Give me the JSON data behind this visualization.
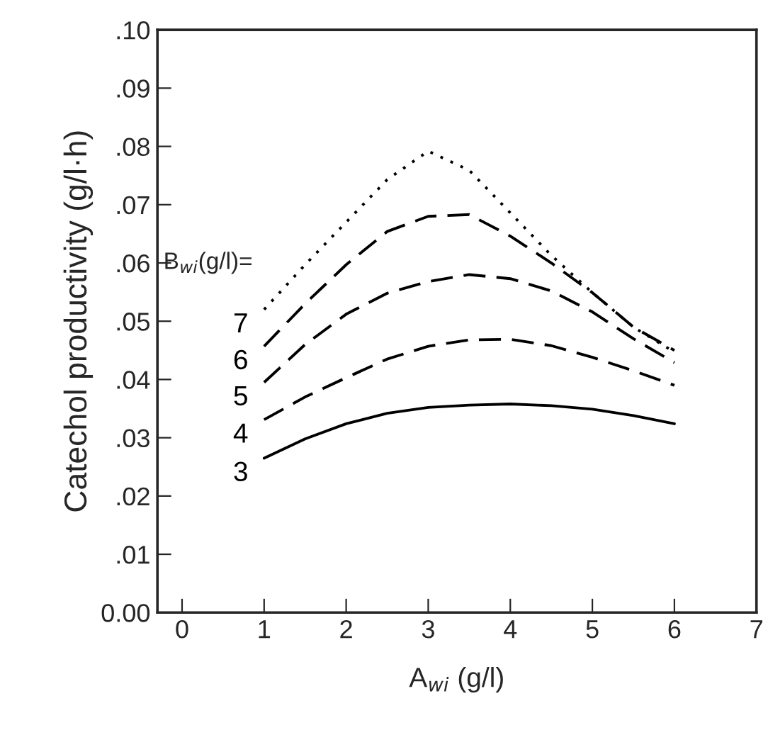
{
  "chart_data": {
    "type": "line",
    "xlabel": "A$_{wi}$ (g/l)",
    "ylabel": "Catechol productivity (g/l·h)",
    "annotations": [
      "B$_{wi}$(g/l)="
    ],
    "x": [
      1,
      1.5,
      2,
      2.5,
      3,
      3.5,
      4,
      4.5,
      5,
      5.5,
      6
    ],
    "series": [
      {
        "name": "7",
        "color": "#000000",
        "line_style": "dotted",
        "values": [
          0.052,
          0.0597,
          0.067,
          0.0743,
          0.0792,
          0.0759,
          0.0686,
          0.0613,
          0.0549,
          0.049,
          0.0447
        ]
      },
      {
        "name": "6",
        "color": "#000000",
        "line_style": "dashed",
        "values": [
          0.0457,
          0.053,
          0.0597,
          0.0654,
          0.068,
          0.0683,
          0.0646,
          0.06,
          0.0549,
          0.049,
          0.045
        ]
      },
      {
        "name": "5",
        "color": "#000000",
        "line_style": "dashed",
        "values": [
          0.0395,
          0.046,
          0.0512,
          0.0548,
          0.0568,
          0.058,
          0.0573,
          0.0552,
          0.0516,
          0.047,
          0.0429
        ]
      },
      {
        "name": "4",
        "color": "#000000",
        "line_style": "dashed",
        "values": [
          0.0331,
          0.037,
          0.0403,
          0.0435,
          0.0457,
          0.0468,
          0.0469,
          0.0458,
          0.0438,
          0.0415,
          0.039
        ]
      },
      {
        "name": "3",
        "color": "#000000",
        "line_style": "solid",
        "values": [
          0.0265,
          0.0298,
          0.0324,
          0.0342,
          0.0352,
          0.0356,
          0.0358,
          0.0355,
          0.0349,
          0.0338,
          0.0324
        ]
      }
    ],
    "xlim": [
      -0.3,
      7
    ],
    "xticks": [
      0,
      1,
      2,
      3,
      4,
      5,
      6,
      7
    ],
    "ylim": [
      0,
      0.1
    ],
    "yticks": [
      {
        "value": 0,
        "label": "0.00"
      },
      {
        "value": 0.01,
        "label": ".01"
      },
      {
        "value": 0.02,
        "label": ".02"
      },
      {
        "value": 0.03,
        "label": ".03"
      },
      {
        "value": 0.04,
        "label": ".04"
      },
      {
        "value": 0.05,
        "label": ".05"
      },
      {
        "value": 0.06,
        "label": ".06"
      },
      {
        "value": 0.07,
        "label": ".07"
      },
      {
        "value": 0.08,
        "label": ".08"
      },
      {
        "value": 0.09,
        "label": ".09"
      },
      {
        "value": 0.1,
        "label": ".10"
      }
    ],
    "grid": false,
    "legend": false
  }
}
